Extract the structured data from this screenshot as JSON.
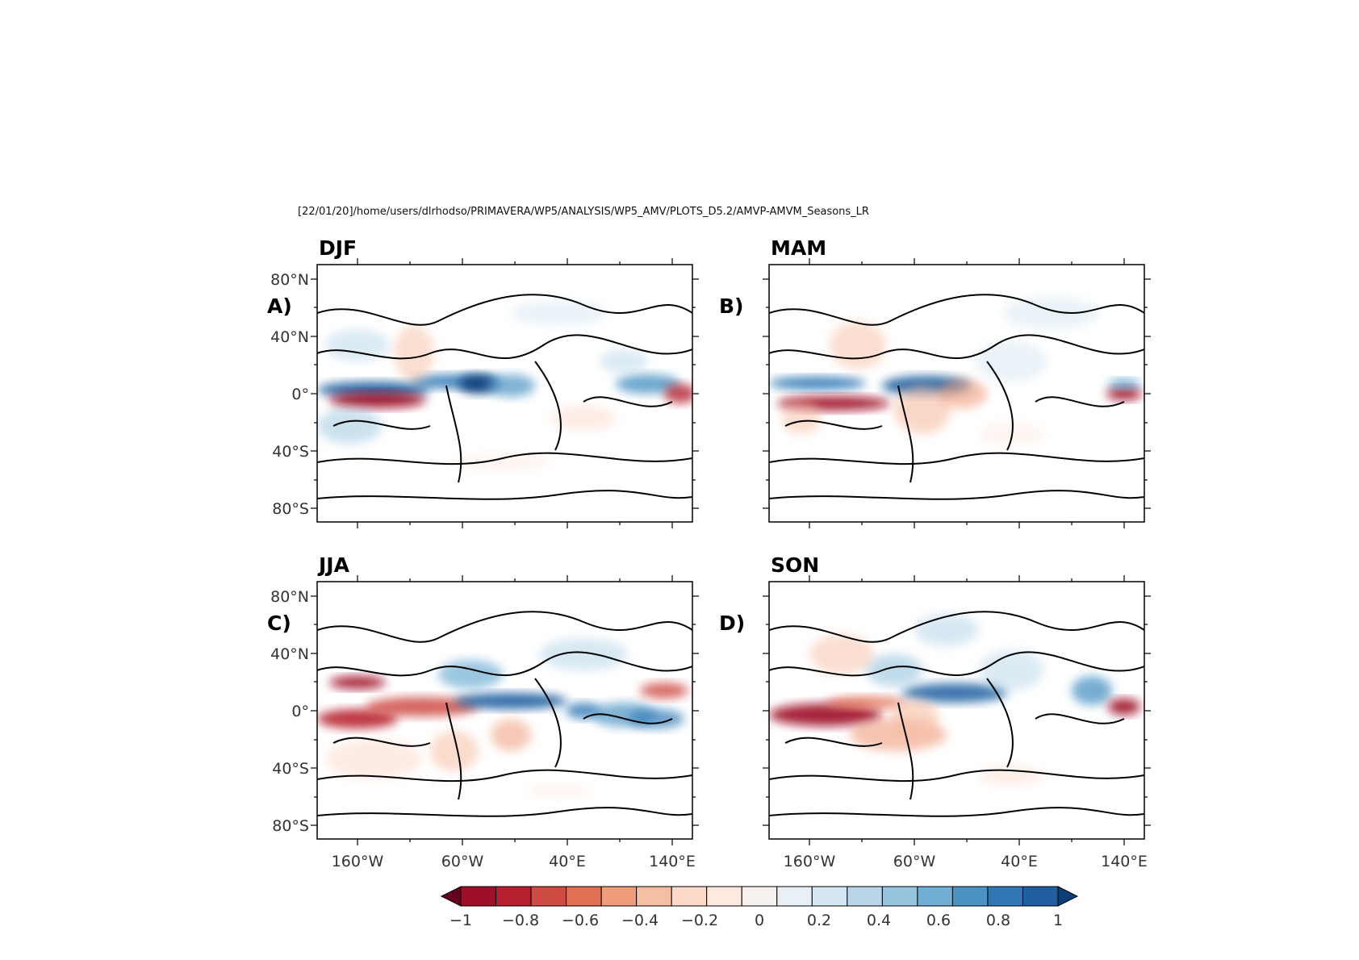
{
  "header": {
    "path": "[22/01/20]/home/users/dlrhodso/PRIMAVERA/WP5/ANALYSIS/WP5_AMV/PLOTS_D5.2/AMVP-AMVM_Seasons_LR"
  },
  "panels": [
    {
      "season": "DJF",
      "letter": "A)"
    },
    {
      "season": "MAM",
      "letter": "B)"
    },
    {
      "season": "JJA",
      "letter": "C)"
    },
    {
      "season": "SON",
      "letter": "D)"
    }
  ],
  "axes": {
    "lat_ticks": [
      "80°N",
      "40°N",
      "0°",
      "40°S",
      "80°S"
    ],
    "lon_ticks": [
      "160°W",
      "60°W",
      "40°E",
      "140°E"
    ]
  },
  "colorbar": {
    "labels": [
      "−1",
      "−0.8",
      "−0.6",
      "−0.4",
      "−0.2",
      "0",
      "0.2",
      "0.4",
      "0.6",
      "0.8",
      "1"
    ],
    "colors": [
      "#67001f",
      "#9e0f28",
      "#b6202f",
      "#cf4c45",
      "#e07054",
      "#f09c7b",
      "#f6bea3",
      "#fbd8c8",
      "#fde9df",
      "#f6f0ee",
      "#e8f0f5",
      "#d4e6f1",
      "#b8d6e8",
      "#97c4df",
      "#70aed4",
      "#4a93c4",
      "#2f78b5",
      "#1f5fa0",
      "#0a3d7a"
    ]
  }
}
